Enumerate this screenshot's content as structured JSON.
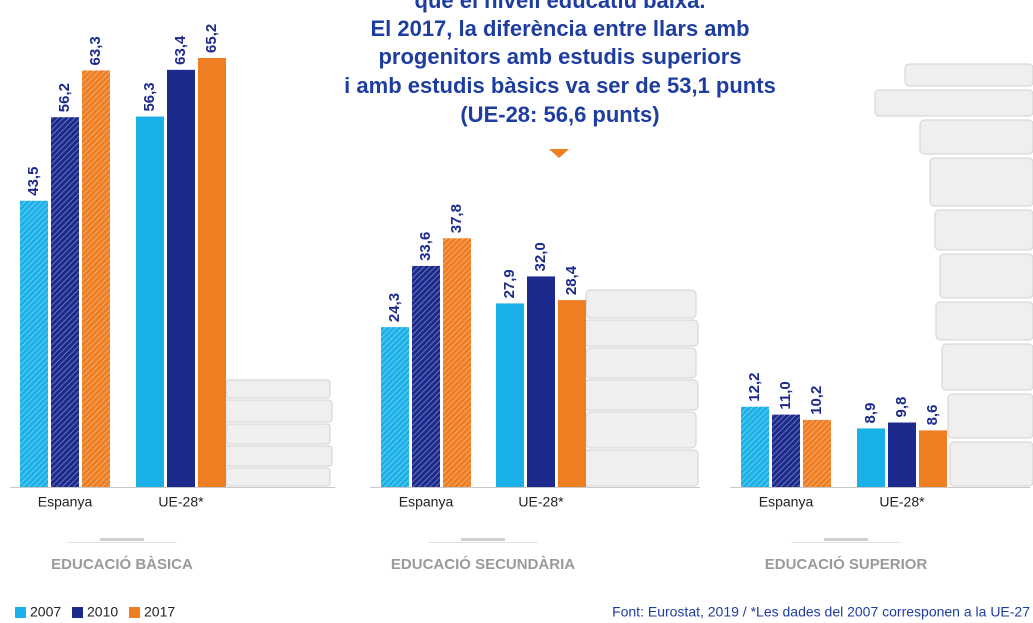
{
  "header": {
    "lines": [
      "que el nivell educatiu baixa.",
      "El 2017, la diferència entre llars amb",
      "progenitors amb estudis superiors",
      "i amb estudis bàsics va ser de 53,1 punts",
      "(UE-28: 56,6 punts)"
    ]
  },
  "chart_data": [
    {
      "type": "bar",
      "title": "EDUCACIÓ BÀSICA",
      "categories": [
        "Espanya",
        "UE-28*"
      ],
      "category_styles": [
        "hatched",
        "solid"
      ],
      "series": [
        {
          "name": "2007",
          "color": "#1ab0e8",
          "values": [
            43.5,
            56.3
          ],
          "value_labels": [
            "43,5",
            "56,3"
          ]
        },
        {
          "name": "2010",
          "color": "#1b2a8c",
          "values": [
            56.2,
            63.4
          ],
          "value_labels": [
            "56,2",
            "63,4"
          ]
        },
        {
          "name": "2017",
          "color": "#ef7d22",
          "values": [
            63.3,
            65.2
          ],
          "value_labels": [
            "63,3",
            "65,2"
          ]
        }
      ]
    },
    {
      "type": "bar",
      "title": "EDUCACIÓ SECUNDÀRIA",
      "categories": [
        "Espanya",
        "UE-28*"
      ],
      "category_styles": [
        "hatched",
        "solid"
      ],
      "series": [
        {
          "name": "2007",
          "color": "#1ab0e8",
          "values": [
            24.3,
            27.9
          ],
          "value_labels": [
            "24,3",
            "27,9"
          ]
        },
        {
          "name": "2010",
          "color": "#1b2a8c",
          "values": [
            33.6,
            32.0
          ],
          "value_labels": [
            "33,6",
            "32,0"
          ]
        },
        {
          "name": "2017",
          "color": "#ef7d22",
          "values": [
            37.8,
            28.4
          ],
          "value_labels": [
            "37,8",
            "28,4"
          ]
        }
      ]
    },
    {
      "type": "bar",
      "title": "EDUCACIÓ SUPERIOR",
      "categories": [
        "Espanya",
        "UE-28*"
      ],
      "category_styles": [
        "hatched",
        "solid"
      ],
      "series": [
        {
          "name": "2007",
          "color": "#1ab0e8",
          "values": [
            12.2,
            8.9
          ],
          "value_labels": [
            "12,2",
            "8,9"
          ]
        },
        {
          "name": "2010",
          "color": "#1b2a8c",
          "values": [
            11.0,
            9.8
          ],
          "value_labels": [
            "11,0",
            "9,8"
          ]
        },
        {
          "name": "2017",
          "color": "#ef7d22",
          "values": [
            10.2,
            8.6
          ],
          "value_labels": [
            "10,2",
            "8,6"
          ]
        }
      ]
    }
  ],
  "source": "Font: Eurostat, 2019 / *Les dades del 2007 corresponen a la UE-27"
}
